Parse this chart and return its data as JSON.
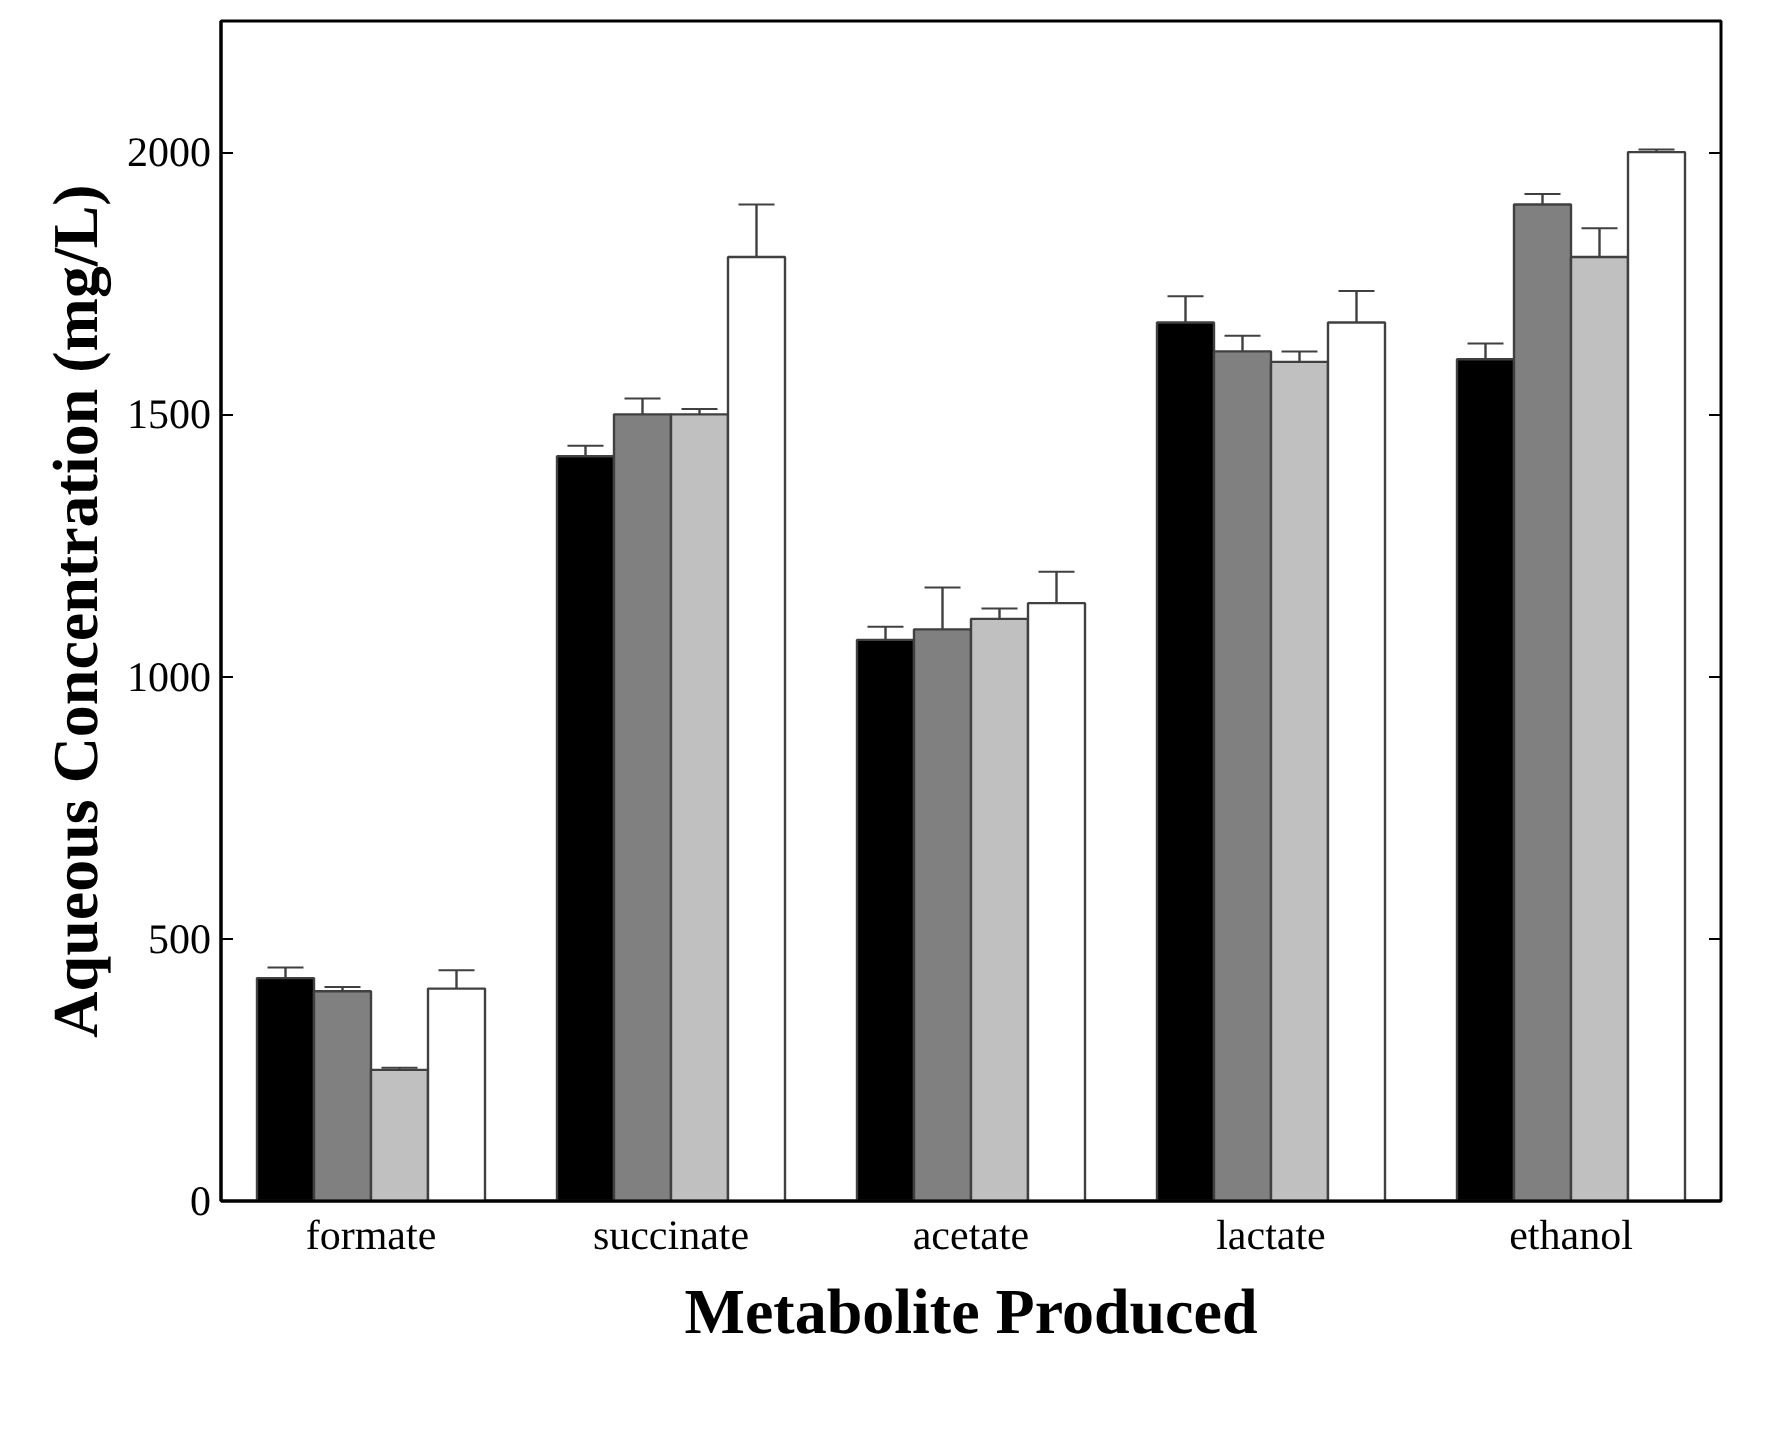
{
  "chart_data": {
    "type": "bar",
    "xlabel": "Metabolite Produced",
    "ylabel": "Aqueous Concentration (mg/L)",
    "categories": [
      "formate",
      "succinate",
      "acetate",
      "lactate",
      "ethanol"
    ],
    "series": [
      {
        "color": "#000000",
        "values": [
          425,
          1420,
          1070,
          1675,
          1605
        ],
        "errors": [
          20,
          20,
          25,
          50,
          30
        ]
      },
      {
        "color": "#808080",
        "values": [
          400,
          1500,
          1090,
          1620,
          1900
        ],
        "errors": [
          8,
          30,
          80,
          30,
          20
        ]
      },
      {
        "color": "#c0c0c0",
        "values": [
          250,
          1500,
          1110,
          1600,
          1800
        ],
        "errors": [
          4,
          10,
          20,
          20,
          55
        ]
      },
      {
        "color": "#ffffff",
        "values": [
          405,
          1800,
          1140,
          1675,
          2000
        ],
        "errors": [
          35,
          100,
          60,
          60,
          5
        ]
      }
    ],
    "ylim": [
      0,
      2250
    ],
    "yticks": [
      0,
      500,
      1000,
      1500,
      2000
    ],
    "grid": false
  }
}
